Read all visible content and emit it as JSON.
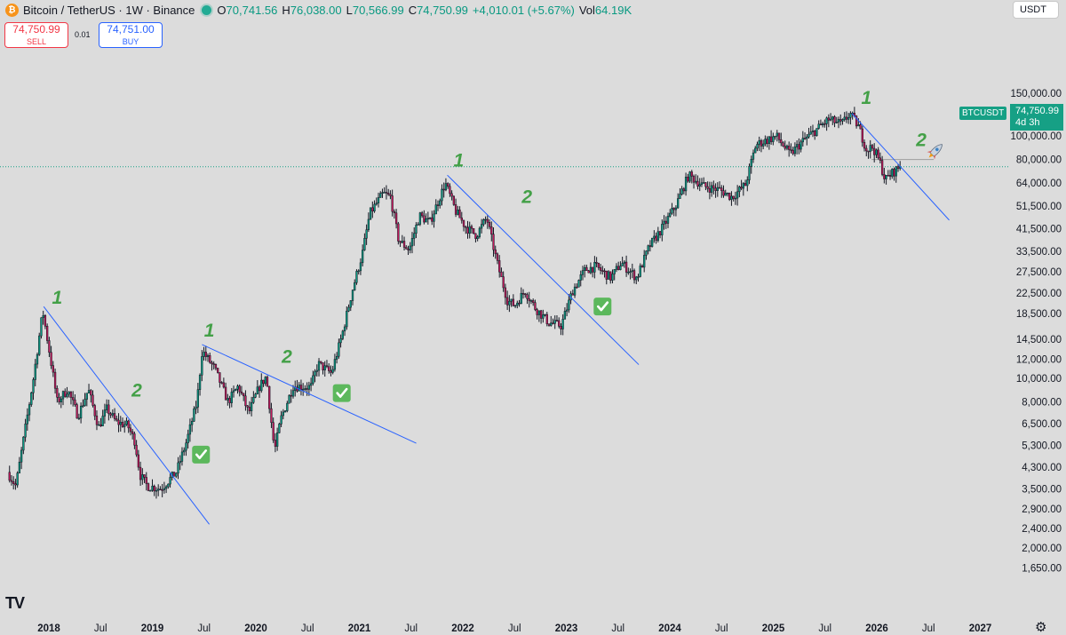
{
  "header": {
    "symbol": "Bitcoin / TetherUS · 1W · Binance",
    "coin_glyph": "₿",
    "ohlc": [
      {
        "k": "O",
        "v": "70,741.56"
      },
      {
        "k": "H",
        "v": "76,038.00"
      },
      {
        "k": "L",
        "v": "70,566.99"
      },
      {
        "k": "C",
        "v": "74,750.99"
      },
      {
        "k": "",
        "v": "+4,010.01 (+5.67%)"
      },
      {
        "k": "Vol",
        "v": "64.19K"
      }
    ],
    "currency_select": "USDT"
  },
  "trade": {
    "sell_price": "74,750.99",
    "sell_label": "SELL",
    "spread": "0.01",
    "buy_price": "74,751.00",
    "buy_label": "BUY"
  },
  "price_tag": {
    "symbol": "BTCUSDT",
    "price": "74,750.99",
    "countdown": "4d 3h"
  },
  "brand": "TV",
  "colors": {
    "up": "#089981",
    "down": "#c2185b",
    "trendline": "#2962ff",
    "wave_label": "#43a047",
    "check": "#5cb85c",
    "price_line": "#16a085"
  },
  "chart_data": {
    "type": "candlestick",
    "title": "",
    "y_scale": "log",
    "ylim": [
      1450,
      145000
    ],
    "y_ticks": [
      150000,
      120000,
      100000,
      80000,
      64000,
      51500,
      41500,
      33500,
      27500,
      22500,
      18500,
      14500,
      12000,
      10000,
      8000,
      6500,
      5300,
      4300,
      3500,
      2900,
      2400,
      2000,
      1650
    ],
    "y_tick_labels": [
      "150,000.00",
      "120,000.00",
      "100,000.00",
      "80,000.00",
      "64,000.00",
      "51,500.00",
      "41,500.00",
      "33,500.00",
      "27,500.00",
      "22,500.00",
      "18,500.00",
      "14,500.00",
      "12,000.00",
      "10,000.00",
      "8,000.00",
      "6,500.00",
      "5,300.00",
      "4,300.00",
      "3,500.00",
      "2,900.00",
      "2,400.00",
      "2,000.00",
      "1,650.00"
    ],
    "x_ticks": [
      {
        "t": 2018.0,
        "label": "2018",
        "bold": true
      },
      {
        "t": 2018.5,
        "label": "Jul",
        "bold": false
      },
      {
        "t": 2019.0,
        "label": "2019",
        "bold": true
      },
      {
        "t": 2019.5,
        "label": "Jul",
        "bold": false
      },
      {
        "t": 2020.0,
        "label": "2020",
        "bold": true
      },
      {
        "t": 2020.5,
        "label": "Jul",
        "bold": false
      },
      {
        "t": 2021.0,
        "label": "2021",
        "bold": true
      },
      {
        "t": 2021.5,
        "label": "Jul",
        "bold": false
      },
      {
        "t": 2022.0,
        "label": "2022",
        "bold": true
      },
      {
        "t": 2022.5,
        "label": "Jul",
        "bold": false
      },
      {
        "t": 2023.0,
        "label": "2023",
        "bold": true
      },
      {
        "t": 2023.5,
        "label": "Jul",
        "bold": false
      },
      {
        "t": 2024.0,
        "label": "2024",
        "bold": true
      },
      {
        "t": 2024.5,
        "label": "Jul",
        "bold": false
      },
      {
        "t": 2025.0,
        "label": "2025",
        "bold": true
      },
      {
        "t": 2025.5,
        "label": "Jul",
        "bold": false
      },
      {
        "t": 2026.0,
        "label": "2026",
        "bold": true
      },
      {
        "t": 2026.5,
        "label": "Jul",
        "bold": false
      },
      {
        "t": 2027.0,
        "label": "2027",
        "bold": true
      }
    ],
    "price_path": [
      [
        2017.62,
        4100
      ],
      [
        2017.7,
        3600
      ],
      [
        2017.78,
        5800
      ],
      [
        2017.87,
        10000
      ],
      [
        2017.96,
        19000
      ],
      [
        2018.05,
        11000
      ],
      [
        2018.1,
        8000
      ],
      [
        2018.2,
        9000
      ],
      [
        2018.3,
        7000
      ],
      [
        2018.4,
        9000
      ],
      [
        2018.5,
        6300
      ],
      [
        2018.58,
        7500
      ],
      [
        2018.67,
        6600
      ],
      [
        2018.78,
        6400
      ],
      [
        2018.85,
        5500
      ],
      [
        2018.9,
        4000
      ],
      [
        2018.97,
        3600
      ],
      [
        2019.1,
        3500
      ],
      [
        2019.25,
        4100
      ],
      [
        2019.35,
        5500
      ],
      [
        2019.45,
        8000
      ],
      [
        2019.5,
        13000
      ],
      [
        2019.62,
        11000
      ],
      [
        2019.75,
        8000
      ],
      [
        2019.85,
        9300
      ],
      [
        2019.95,
        7200
      ],
      [
        2020.05,
        9200
      ],
      [
        2020.12,
        10200
      ],
      [
        2020.2,
        5000
      ],
      [
        2020.26,
        6800
      ],
      [
        2020.38,
        9300
      ],
      [
        2020.55,
        9200
      ],
      [
        2020.62,
        11500
      ],
      [
        2020.75,
        10500
      ],
      [
        2020.85,
        15000
      ],
      [
        2020.95,
        23000
      ],
      [
        2021.05,
        33000
      ],
      [
        2021.12,
        48000
      ],
      [
        2021.25,
        58000
      ],
      [
        2021.32,
        56000
      ],
      [
        2021.4,
        37000
      ],
      [
        2021.5,
        34000
      ],
      [
        2021.6,
        47000
      ],
      [
        2021.7,
        44000
      ],
      [
        2021.85,
        64000
      ],
      [
        2021.95,
        49000
      ],
      [
        2022.05,
        42000
      ],
      [
        2022.15,
        39000
      ],
      [
        2022.25,
        46000
      ],
      [
        2022.35,
        30000
      ],
      [
        2022.45,
        21000
      ],
      [
        2022.52,
        20000
      ],
      [
        2022.62,
        23000
      ],
      [
        2022.72,
        19500
      ],
      [
        2022.85,
        17000
      ],
      [
        2022.97,
        16500
      ],
      [
        2023.08,
        23000
      ],
      [
        2023.2,
        28000
      ],
      [
        2023.3,
        29000
      ],
      [
        2023.45,
        26000
      ],
      [
        2023.55,
        30000
      ],
      [
        2023.7,
        26000
      ],
      [
        2023.82,
        35000
      ],
      [
        2023.95,
        42000
      ],
      [
        2024.08,
        52000
      ],
      [
        2024.2,
        69000
      ],
      [
        2024.35,
        62000
      ],
      [
        2024.5,
        60000
      ],
      [
        2024.62,
        56000
      ],
      [
        2024.75,
        63000
      ],
      [
        2024.85,
        92000
      ],
      [
        2024.95,
        96000
      ],
      [
        2025.05,
        100000
      ],
      [
        2025.18,
        84000
      ],
      [
        2025.3,
        95000
      ],
      [
        2025.42,
        105000
      ],
      [
        2025.55,
        117000
      ],
      [
        2025.68,
        112000
      ],
      [
        2025.76,
        124000
      ],
      [
        2025.84,
        110000
      ],
      [
        2025.92,
        88000
      ],
      [
        2025.98,
        90000
      ],
      [
        2026.05,
        78000
      ],
      [
        2026.1,
        66000
      ],
      [
        2026.16,
        70000
      ],
      [
        2026.24,
        74750
      ]
    ],
    "trendlines": [
      [
        [
          2017.95,
          19800
        ],
        [
          2019.55,
          2500
        ]
      ],
      [
        [
          2019.48,
          13800
        ],
        [
          2021.55,
          5400
        ]
      ],
      [
        [
          2021.85,
          69000
        ],
        [
          2023.7,
          11400
        ]
      ],
      [
        [
          2025.76,
          124000
        ],
        [
          2026.7,
          45000
        ]
      ]
    ],
    "wave_labels": [
      {
        "t": 2018.08,
        "p": 20300,
        "text": "1"
      },
      {
        "t": 2018.85,
        "p": 8400,
        "text": "2"
      },
      {
        "t": 2019.55,
        "p": 14900,
        "text": "1"
      },
      {
        "t": 2020.3,
        "p": 11600,
        "text": "2"
      },
      {
        "t": 2021.96,
        "p": 75000,
        "text": "1"
      },
      {
        "t": 2022.62,
        "p": 53000,
        "text": "2"
      },
      {
        "t": 2025.9,
        "p": 136000,
        "text": "1"
      },
      {
        "t": 2026.43,
        "p": 91000,
        "text": "2"
      }
    ],
    "checkmarks": [
      {
        "t": 2019.47,
        "p": 4850
      },
      {
        "t": 2020.83,
        "p": 8700
      },
      {
        "t": 2023.35,
        "p": 19800
      }
    ],
    "rocket": {
      "t": 2026.57,
      "p": 87000
    },
    "last_price": 74750.99,
    "horizontal_level": 80000
  }
}
